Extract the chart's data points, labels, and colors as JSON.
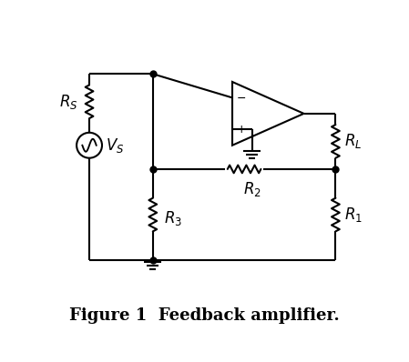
{
  "title": "Figure 1  Feedback amplifier.",
  "title_fontsize": 13,
  "title_bold": true,
  "bg_color": "#ffffff",
  "line_color": "#000000",
  "line_width": 1.5,
  "dot_size": 5,
  "label_fontsize": 12
}
